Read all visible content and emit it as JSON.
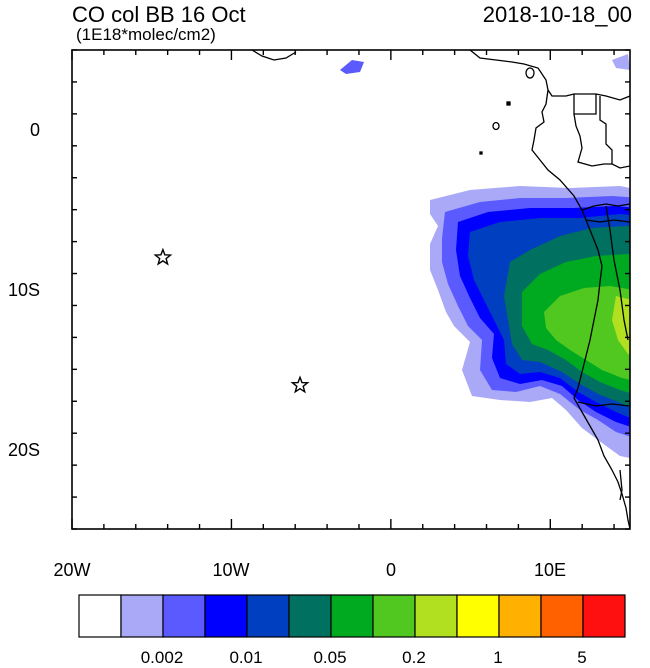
{
  "header": {
    "title": "CO col BB 16 Oct",
    "units": "(1E18*molec/cm2)",
    "valid_time": "2018-10-18_00"
  },
  "axes": {
    "lon_labels": [
      "20W",
      "10W",
      "0",
      "10E"
    ],
    "lat_labels": [
      "0",
      "10S",
      "20S"
    ],
    "lon_range": [
      -20,
      15
    ],
    "lat_range": [
      -25,
      5
    ]
  },
  "markers": [
    {
      "name": "star-marker-1",
      "lon": -14.3,
      "lat": -8.0
    },
    {
      "name": "star-marker-2",
      "lon": -5.7,
      "lat": -16.0
    }
  ],
  "colorbar": {
    "colors": [
      "#ffffff",
      "#a9a9f8",
      "#5a5aff",
      "#0000ff",
      "#003fbf",
      "#007060",
      "#00aa20",
      "#50c820",
      "#b0e020",
      "#ffff00",
      "#ffb000",
      "#ff6000",
      "#ff1010"
    ],
    "labels": [
      "0.002",
      "0.01",
      "0.05",
      "0.2",
      "1",
      "5"
    ]
  }
}
